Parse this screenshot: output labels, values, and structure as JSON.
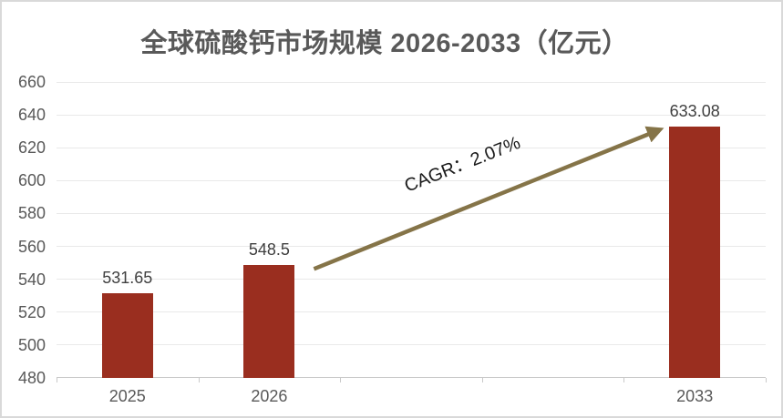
{
  "colors": {
    "background": "#ffffff",
    "frame_border": "#d9d9d9",
    "bar": "#9a2e1f",
    "arrow": "#857448",
    "title_text": "#595959",
    "axis_text": "#595959",
    "value_label_text": "#3f3f3f",
    "annotation_text": "#1a1a1a",
    "gridline": "#e9e9e9",
    "axis_line": "#c9c9c9"
  },
  "chart_data": {
    "type": "bar",
    "title": "全球硫酸钙市场规模 2026-2033（亿元）",
    "categories": [
      "2025",
      "2026",
      "2033"
    ],
    "values": [
      531.65,
      548.5,
      633.08
    ],
    "bars": [
      {
        "label": "2025",
        "slot": 0,
        "value": 531.65,
        "value_label": "531.65"
      },
      {
        "label": "2026",
        "slot": 1,
        "value": 548.5,
        "value_label": "548.5"
      },
      {
        "label": "2033",
        "slot": 4,
        "value": 633.08,
        "value_label": "633.08"
      }
    ],
    "category_slots": 5,
    "xlabel": "",
    "ylabel": "",
    "ylim": [
      480,
      660
    ],
    "ytick_step": 20,
    "yticks": [
      480,
      500,
      520,
      540,
      560,
      580,
      600,
      620,
      640,
      660
    ],
    "grid": true,
    "legend": "none",
    "annotation": {
      "type": "growth-arrow",
      "text": "CAGR：2.07%",
      "from_label": "2026",
      "to_label": "2033"
    }
  }
}
